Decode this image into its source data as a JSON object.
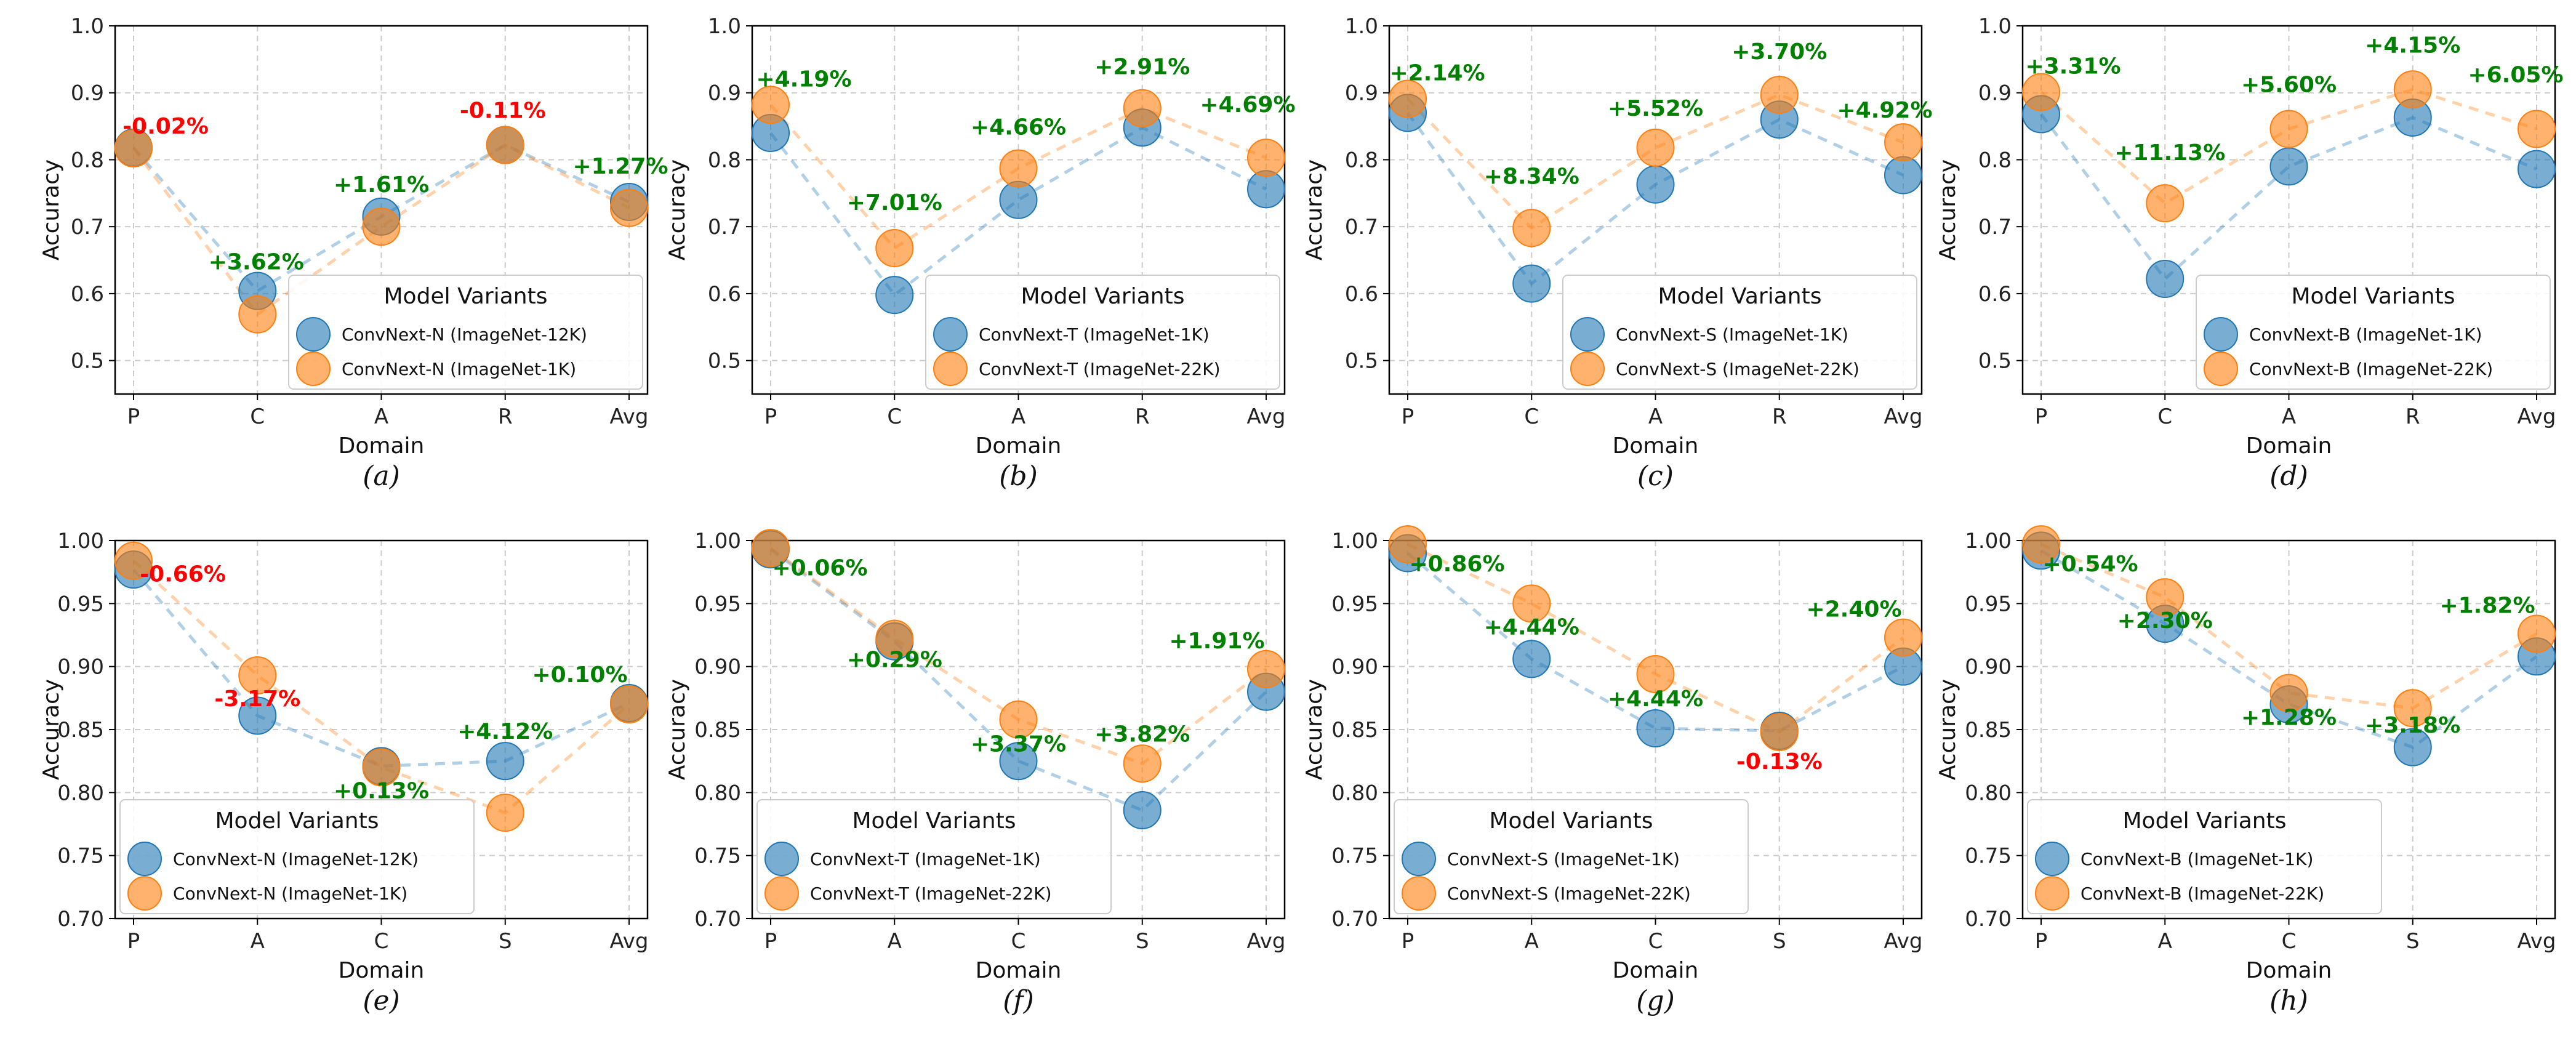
{
  "colors": {
    "series1": "#1f77b4",
    "series2": "#ff7f0e",
    "positive": "#008000",
    "negative": "#ff0000"
  },
  "legend_title": "Model Variants",
  "chart_data": [
    {
      "type": "line",
      "panel_label": "(a)",
      "xlabel": "Domain",
      "ylabel": "Accuracy",
      "categories": [
        "P",
        "C",
        "A",
        "R",
        "Avg"
      ],
      "ylim": [
        0.45,
        1.0
      ],
      "yticks": [
        "0.5",
        "0.6",
        "0.7",
        "0.8",
        "0.9",
        "1.0"
      ],
      "legend_loc": "lower-right",
      "series": [
        {
          "name": "ConvNext-N (ImageNet-12K)",
          "values": [
            0.818,
            0.604,
            0.715,
            0.822,
            0.737
          ]
        },
        {
          "name": "ConvNext-N (ImageNet-1K)",
          "values": [
            0.817,
            0.569,
            0.7,
            0.822,
            0.728
          ]
        }
      ],
      "deltas": [
        "-0.02%",
        "+3.62%",
        "+1.61%",
        "-0.11%",
        "+1.27%"
      ]
    },
    {
      "type": "line",
      "panel_label": "(b)",
      "xlabel": "Domain",
      "ylabel": "Accuracy",
      "categories": [
        "P",
        "C",
        "A",
        "R",
        "Avg"
      ],
      "ylim": [
        0.45,
        1.0
      ],
      "yticks": [
        "0.5",
        "0.6",
        "0.7",
        "0.8",
        "0.9",
        "1.0"
      ],
      "legend_loc": "lower-right",
      "series": [
        {
          "name": "ConvNext-T (ImageNet-1K)",
          "values": [
            0.84,
            0.598,
            0.74,
            0.848,
            0.756
          ]
        },
        {
          "name": "ConvNext-T (ImageNet-22K)",
          "values": [
            0.882,
            0.668,
            0.787,
            0.877,
            0.803
          ]
        }
      ],
      "deltas": [
        "+4.19%",
        "+7.01%",
        "+4.66%",
        "+2.91%",
        "+4.69%"
      ]
    },
    {
      "type": "line",
      "panel_label": "(c)",
      "xlabel": "Domain",
      "ylabel": "Accuracy",
      "categories": [
        "P",
        "C",
        "A",
        "R",
        "Avg"
      ],
      "ylim": [
        0.45,
        1.0
      ],
      "yticks": [
        "0.5",
        "0.6",
        "0.7",
        "0.8",
        "0.9",
        "1.0"
      ],
      "legend_loc": "lower-right",
      "series": [
        {
          "name": "ConvNext-S (ImageNet-1K)",
          "values": [
            0.87,
            0.615,
            0.763,
            0.86,
            0.777
          ]
        },
        {
          "name": "ConvNext-S (ImageNet-22K)",
          "values": [
            0.891,
            0.698,
            0.818,
            0.897,
            0.826
          ]
        }
      ],
      "deltas": [
        "+2.14%",
        "+8.34%",
        "+5.52%",
        "+3.70%",
        "+4.92%"
      ]
    },
    {
      "type": "line",
      "panel_label": "(d)",
      "xlabel": "Domain",
      "ylabel": "Accuracy",
      "categories": [
        "P",
        "C",
        "A",
        "R",
        "Avg"
      ],
      "ylim": [
        0.45,
        1.0
      ],
      "yticks": [
        "0.5",
        "0.6",
        "0.7",
        "0.8",
        "0.9",
        "1.0"
      ],
      "legend_loc": "lower-right",
      "series": [
        {
          "name": "ConvNext-B (ImageNet-1K)",
          "values": [
            0.868,
            0.622,
            0.79,
            0.863,
            0.786
          ]
        },
        {
          "name": "ConvNext-B (ImageNet-22K)",
          "values": [
            0.901,
            0.735,
            0.846,
            0.905,
            0.846
          ]
        }
      ],
      "deltas": [
        "+3.31%",
        "+11.13%",
        "+5.60%",
        "+4.15%",
        "+6.05%"
      ]
    },
    {
      "type": "line",
      "panel_label": "(e)",
      "xlabel": "Domain",
      "ylabel": "Accuracy",
      "categories": [
        "P",
        "A",
        "C",
        "S",
        "Avg"
      ],
      "ylim": [
        0.7,
        1.0
      ],
      "yticks": [
        "0.70",
        "0.75",
        "0.80",
        "0.85",
        "0.90",
        "0.95",
        "1.00"
      ],
      "legend_loc": "lower-left",
      "series": [
        {
          "name": "ConvNext-N (ImageNet-12K)",
          "values": [
            0.977,
            0.861,
            0.821,
            0.825,
            0.871
          ]
        },
        {
          "name": "ConvNext-N (ImageNet-1K)",
          "values": [
            0.984,
            0.893,
            0.82,
            0.784,
            0.87
          ]
        }
      ],
      "deltas": [
        "-0.66%",
        "-3.17%",
        "+0.13%",
        "+4.12%",
        "+0.10%"
      ]
    },
    {
      "type": "line",
      "panel_label": "(f)",
      "xlabel": "Domain",
      "ylabel": "Accuracy",
      "categories": [
        "P",
        "A",
        "C",
        "S",
        "Avg"
      ],
      "ylim": [
        0.7,
        1.0
      ],
      "yticks": [
        "0.70",
        "0.75",
        "0.80",
        "0.85",
        "0.90",
        "0.95",
        "1.00"
      ],
      "legend_loc": "lower-left",
      "series": [
        {
          "name": "ConvNext-T (ImageNet-1K)",
          "values": [
            0.993,
            0.92,
            0.825,
            0.786,
            0.88
          ]
        },
        {
          "name": "ConvNext-T (ImageNet-22K)",
          "values": [
            0.994,
            0.922,
            0.858,
            0.823,
            0.898
          ]
        }
      ],
      "deltas": [
        "+0.06%",
        "+0.29%",
        "+3.37%",
        "+3.82%",
        "+1.91%"
      ]
    },
    {
      "type": "line",
      "panel_label": "(g)",
      "xlabel": "Domain",
      "ylabel": "Accuracy",
      "categories": [
        "P",
        "A",
        "C",
        "S",
        "Avg"
      ],
      "ylim": [
        0.7,
        1.0
      ],
      "yticks": [
        "0.70",
        "0.75",
        "0.80",
        "0.85",
        "0.90",
        "0.95",
        "1.00"
      ],
      "legend_loc": "lower-left",
      "series": [
        {
          "name": "ConvNext-S (ImageNet-1K)",
          "values": [
            0.99,
            0.906,
            0.851,
            0.849,
            0.9
          ]
        },
        {
          "name": "ConvNext-S (ImageNet-22K)",
          "values": [
            0.997,
            0.95,
            0.894,
            0.848,
            0.923
          ]
        }
      ],
      "deltas": [
        "+0.86%",
        "+4.44%",
        "+4.44%",
        "-0.13%",
        "+2.40%"
      ]
    },
    {
      "type": "line",
      "panel_label": "(h)",
      "xlabel": "Domain",
      "ylabel": "Accuracy",
      "categories": [
        "P",
        "A",
        "C",
        "S",
        "Avg"
      ],
      "ylim": [
        0.7,
        1.0
      ],
      "yticks": [
        "0.70",
        "0.75",
        "0.80",
        "0.85",
        "0.90",
        "0.95",
        "1.00"
      ],
      "legend_loc": "lower-left",
      "series": [
        {
          "name": "ConvNext-B (ImageNet-1K)",
          "values": [
            0.992,
            0.934,
            0.87,
            0.836,
            0.908
          ]
        },
        {
          "name": "ConvNext-B (ImageNet-22K)",
          "values": [
            0.997,
            0.955,
            0.879,
            0.867,
            0.926
          ]
        }
      ],
      "deltas": [
        "+0.54%",
        "+2.30%",
        "+1.28%",
        "+3.18%",
        "+1.82%"
      ]
    }
  ]
}
